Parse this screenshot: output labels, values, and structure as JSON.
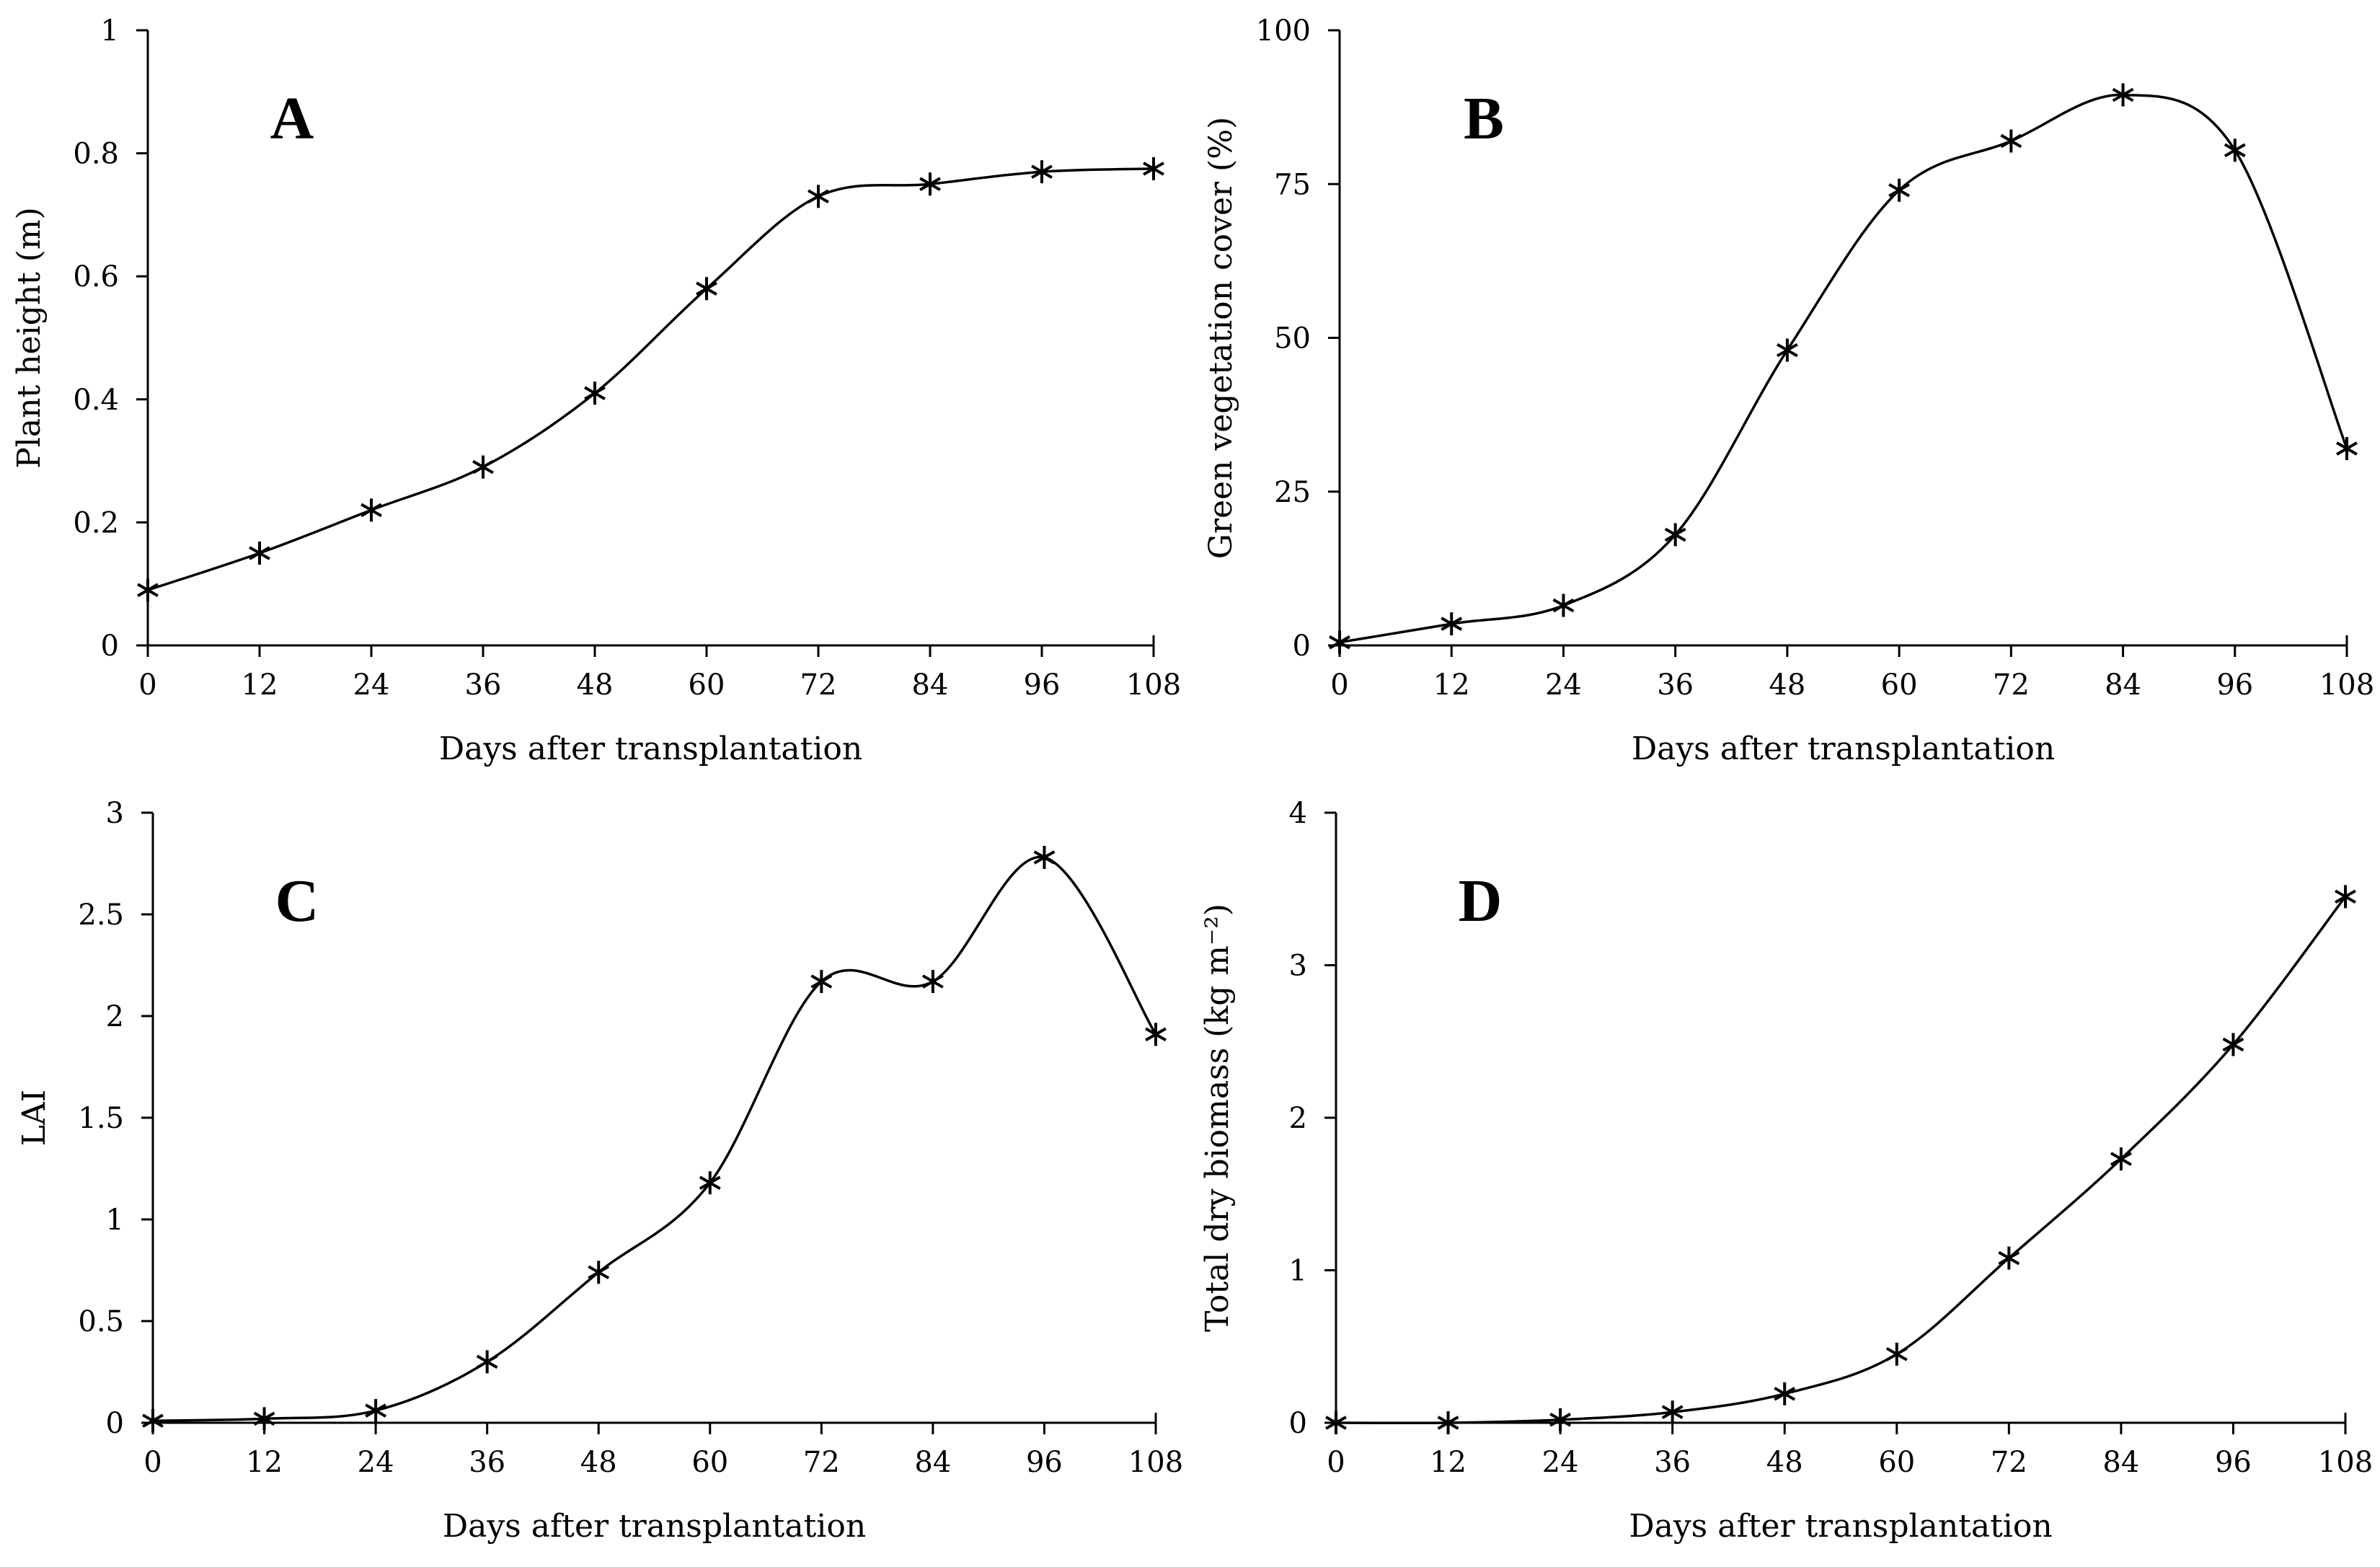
{
  "chart_data": [
    {
      "type": "line",
      "panel": "A",
      "title": "",
      "xlabel": "Days after transplantation",
      "ylabel": "Plant height (m)",
      "x": [
        0,
        12,
        24,
        36,
        48,
        60,
        72,
        84,
        96,
        108
      ],
      "values": [
        0.09,
        0.15,
        0.22,
        0.29,
        0.41,
        0.58,
        0.73,
        0.75,
        0.77,
        0.775
      ],
      "xlim": [
        0,
        108
      ],
      "ylim": [
        0,
        1
      ],
      "x_ticks": [
        0,
        12,
        24,
        36,
        48,
        60,
        72,
        84,
        96,
        108
      ],
      "x_tick_labels": [
        "0",
        "12",
        "24",
        "36",
        "48",
        "60",
        "72",
        "84",
        "96",
        "108"
      ],
      "y_ticks": [
        0,
        0.2,
        0.4,
        0.6,
        0.8,
        1
      ],
      "y_tick_labels": [
        "0",
        "0.2",
        "0.4",
        "0.6",
        "0.8",
        "1"
      ],
      "marker": "asterisk",
      "smooth": true
    },
    {
      "type": "line",
      "panel": "B",
      "title": "",
      "xlabel": "Days after transplantation",
      "ylabel": "Green vegetation cover (%)",
      "x": [
        0,
        12,
        24,
        36,
        48,
        60,
        72,
        84,
        96,
        108
      ],
      "values": [
        0.5,
        3.5,
        6.5,
        18,
        48,
        74,
        82,
        89.5,
        80.5,
        32
      ],
      "xlim": [
        0,
        108
      ],
      "ylim": [
        0,
        100
      ],
      "x_ticks": [
        0,
        12,
        24,
        36,
        48,
        60,
        72,
        84,
        96,
        108
      ],
      "x_tick_labels": [
        "0",
        "12",
        "24",
        "36",
        "48",
        "60",
        "72",
        "84",
        "96",
        "108"
      ],
      "y_ticks": [
        0,
        25,
        50,
        75,
        100
      ],
      "y_tick_labels": [
        "0",
        "25",
        "50",
        "75",
        "100"
      ],
      "marker": "asterisk",
      "smooth": true
    },
    {
      "type": "line",
      "panel": "C",
      "title": "",
      "xlabel": "Days after transplantation",
      "ylabel": "LAI",
      "x": [
        0,
        12,
        24,
        36,
        48,
        60,
        72,
        84,
        96,
        108
      ],
      "values": [
        0.01,
        0.02,
        0.06,
        0.3,
        0.74,
        1.18,
        2.17,
        2.17,
        2.78,
        1.91
      ],
      "xlim": [
        0,
        108
      ],
      "ylim": [
        0,
        3
      ],
      "x_ticks": [
        0,
        12,
        24,
        36,
        48,
        60,
        72,
        84,
        96,
        108
      ],
      "x_tick_labels": [
        "0",
        "12",
        "24",
        "36",
        "48",
        "60",
        "72",
        "84",
        "96",
        "108"
      ],
      "y_ticks": [
        0,
        0.5,
        1,
        1.5,
        2,
        2.5,
        3
      ],
      "y_tick_labels": [
        "0",
        "0.5",
        "1",
        "1.5",
        "2",
        "2.5",
        "3"
      ],
      "marker": "asterisk",
      "smooth": true
    },
    {
      "type": "line",
      "panel": "D",
      "title": "",
      "xlabel": "Days after transplantation",
      "ylabel": "Total dry biomass (kg m⁻²)",
      "x": [
        0,
        12,
        24,
        36,
        48,
        60,
        72,
        84,
        96,
        108
      ],
      "values": [
        0,
        0,
        0.02,
        0.07,
        0.19,
        0.45,
        1.08,
        1.73,
        2.48,
        3.45
      ],
      "xlim": [
        0,
        108
      ],
      "ylim": [
        0,
        4
      ],
      "x_ticks": [
        0,
        12,
        24,
        36,
        48,
        60,
        72,
        84,
        96,
        108
      ],
      "x_tick_labels": [
        "0",
        "12",
        "24",
        "36",
        "48",
        "60",
        "72",
        "84",
        "96",
        "108"
      ],
      "y_ticks": [
        0,
        1,
        2,
        3,
        4
      ],
      "y_tick_labels": [
        "0",
        "1",
        "2",
        "3",
        "4"
      ],
      "marker": "asterisk",
      "smooth": true
    }
  ]
}
